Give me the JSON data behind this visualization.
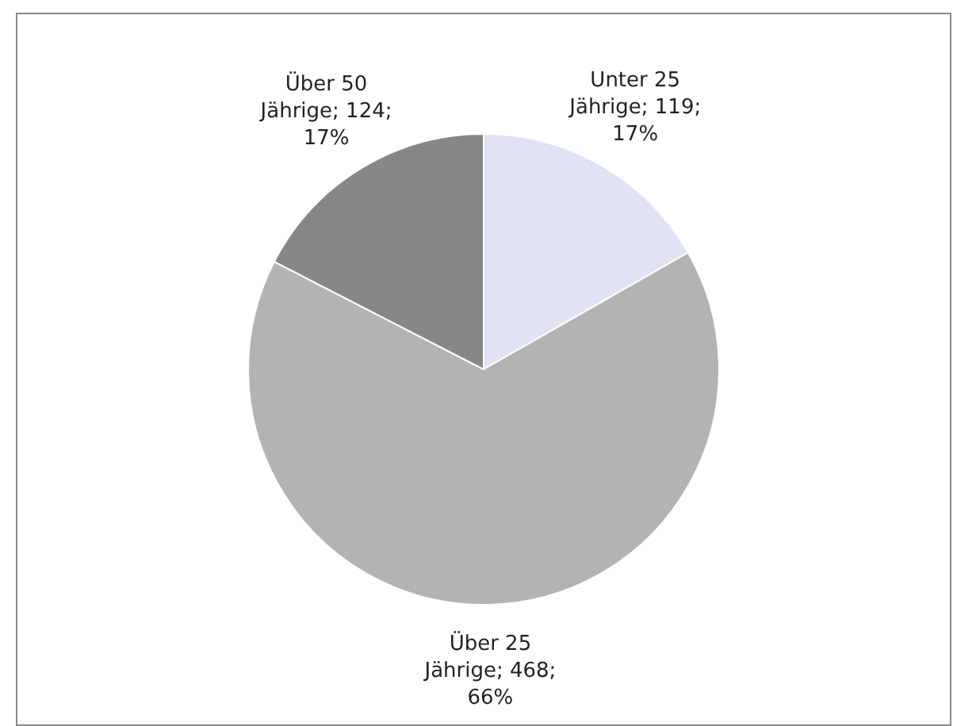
{
  "chart_data": {
    "type": "pie",
    "categories": [
      "Unter 25 Jährige",
      "Über 25 Jährige",
      "Über 50 Jährige"
    ],
    "values": [
      119,
      468,
      124
    ],
    "colors": [
      "#e2e2f6",
      "#b3b3b3",
      "#878787"
    ],
    "value_labels": [
      "119; 17%",
      "468; 66%",
      "124; 17%"
    ],
    "data_labels": true,
    "legend": false
  }
}
